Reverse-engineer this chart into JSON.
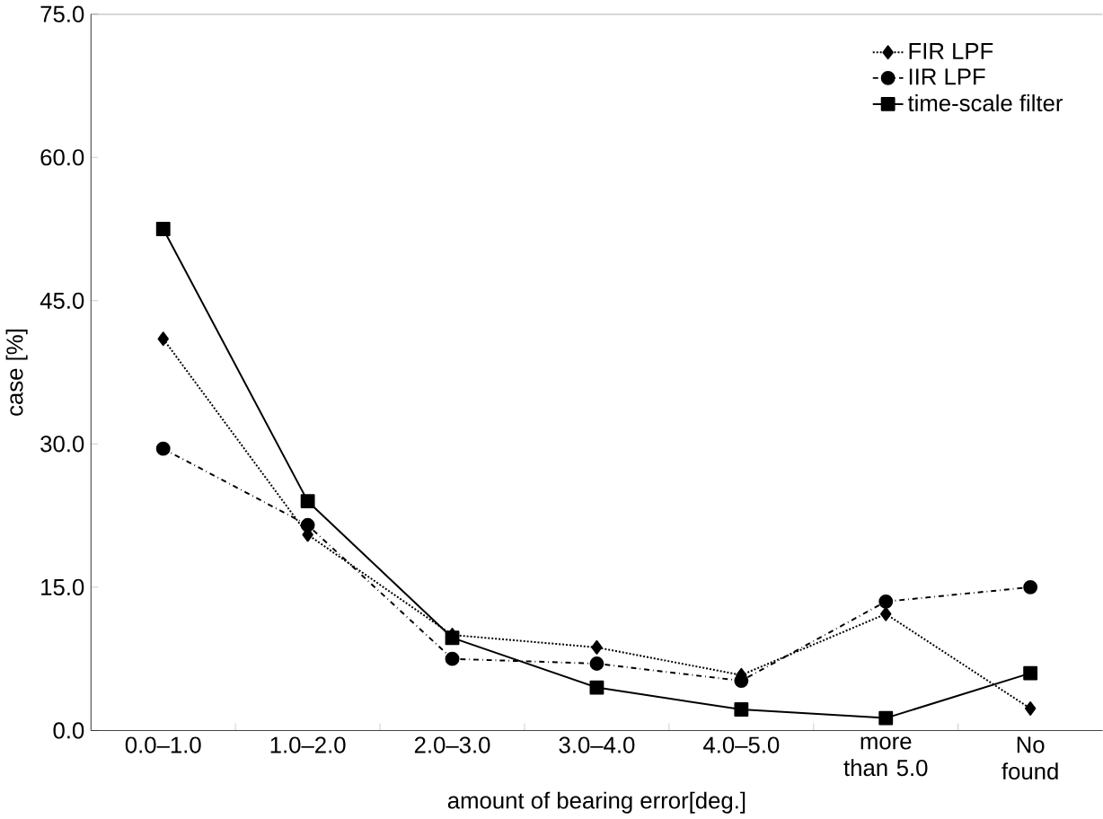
{
  "chart_data": {
    "type": "line",
    "xlabel": "amount of bearing error[deg.]",
    "ylabel": "case [%]",
    "categories": [
      "0.0–1.0",
      "1.0–2.0",
      "2.0–3.0",
      "3.0–4.0",
      "4.0–5.0",
      "more than 5.0",
      "No found"
    ],
    "ylim": [
      0,
      75
    ],
    "yticks": [
      {
        "value": 0,
        "label": "0.0"
      },
      {
        "value": 15,
        "label": "15.0"
      },
      {
        "value": 30,
        "label": "30.0"
      },
      {
        "value": 45,
        "label": "45.0"
      },
      {
        "value": 60,
        "label": "60.0"
      },
      {
        "value": 75,
        "label": "75.0"
      }
    ],
    "grid": false,
    "legend": "top right",
    "series": [
      {
        "name": "FIR LPF",
        "color": "#000000",
        "marker": "diamond",
        "line_style": "dotted",
        "values": [
          41,
          20.5,
          10,
          8.7,
          5.8,
          12.2,
          2.3
        ]
      },
      {
        "name": "IIR LPF",
        "color": "#000000",
        "marker": "circle",
        "line_style": "dashdot",
        "values": [
          29.5,
          21.5,
          7.5,
          7,
          5.2,
          13.5,
          15
        ]
      },
      {
        "name": "time-scale filter",
        "color": "#000000",
        "marker": "square",
        "line_style": "solid",
        "values": [
          52.5,
          24,
          9.7,
          4.5,
          2.2,
          1.3,
          6
        ]
      }
    ]
  }
}
